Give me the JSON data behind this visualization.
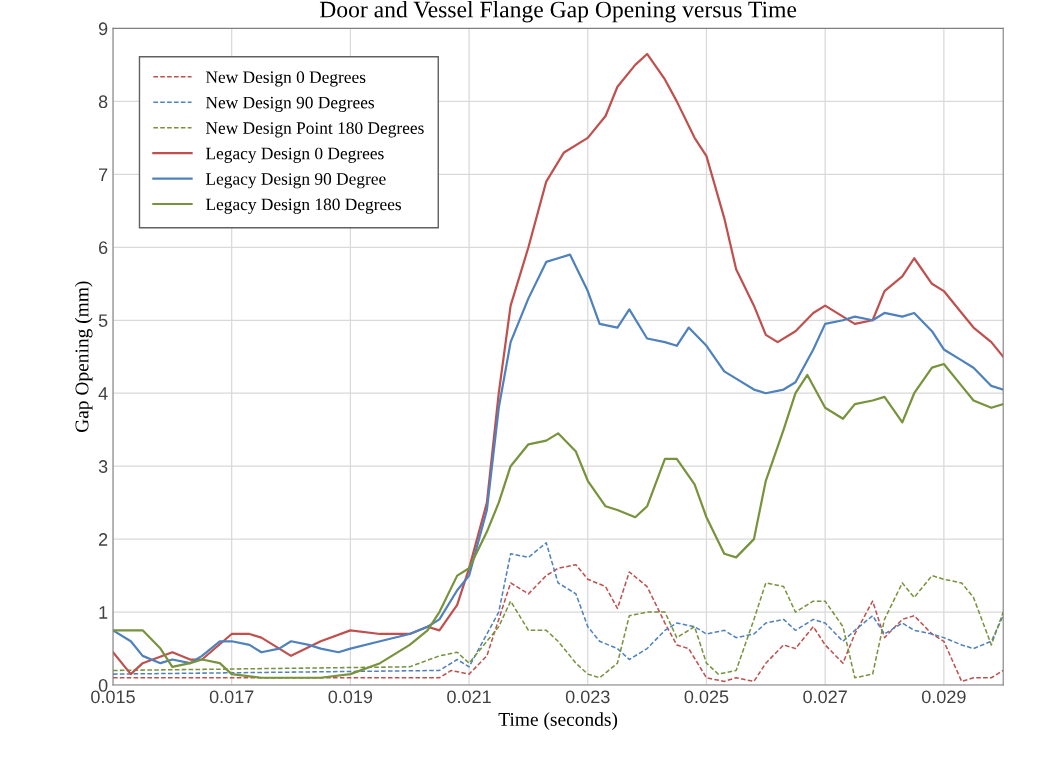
{
  "chart_data": {
    "type": "line",
    "title": "Door and Vessel Flange Gap Opening versus Time",
    "xlabel": "Time (seconds)",
    "ylabel": "Gap Opening (mm)",
    "xlim": [
      0.015,
      0.03
    ],
    "xticks": [
      0.015,
      0.017,
      0.019,
      0.021,
      0.023,
      0.025,
      0.027,
      0.029
    ],
    "ylim": [
      0,
      9
    ],
    "yticks": [
      0,
      1,
      2,
      3,
      4,
      5,
      6,
      7,
      8,
      9
    ],
    "grid": true,
    "legend": "top left",
    "marker": "none",
    "series": [
      {
        "name": "New Design 0 Degrees",
        "color": "#c0504d",
        "line_style": "dashed",
        "x": [
          0.015,
          0.0205,
          0.0207,
          0.021,
          0.0213,
          0.0215,
          0.0217,
          0.022,
          0.0223,
          0.0225,
          0.0228,
          0.023,
          0.0233,
          0.0235,
          0.0237,
          0.024,
          0.0243,
          0.0245,
          0.0247,
          0.025,
          0.0253,
          0.0255,
          0.0258,
          0.026,
          0.0263,
          0.0265,
          0.0268,
          0.027,
          0.0273,
          0.0275,
          0.0278,
          0.028,
          0.0283,
          0.0285,
          0.0288,
          0.029,
          0.0293,
          0.0295,
          0.0298,
          0.03
        ],
        "values": [
          0.1,
          0.1,
          0.2,
          0.15,
          0.4,
          0.9,
          1.4,
          1.25,
          1.5,
          1.6,
          1.65,
          1.45,
          1.35,
          1.05,
          1.55,
          1.35,
          0.85,
          0.55,
          0.5,
          0.1,
          0.05,
          0.1,
          0.05,
          0.3,
          0.55,
          0.5,
          0.8,
          0.55,
          0.3,
          0.7,
          1.15,
          0.65,
          0.9,
          0.95,
          0.7,
          0.6,
          0.05,
          0.1,
          0.1,
          0.2
        ]
      },
      {
        "name": "New Design 90 Degrees",
        "color": "#4f81bd",
        "line_style": "dashed",
        "x": [
          0.015,
          0.0205,
          0.0208,
          0.021,
          0.0213,
          0.0215,
          0.0217,
          0.022,
          0.0223,
          0.0225,
          0.0228,
          0.023,
          0.0232,
          0.0235,
          0.0237,
          0.024,
          0.0243,
          0.0245,
          0.0248,
          0.025,
          0.0253,
          0.0255,
          0.0258,
          0.026,
          0.0263,
          0.0265,
          0.0268,
          0.027,
          0.0273,
          0.0275,
          0.0278,
          0.028,
          0.0283,
          0.0285,
          0.0288,
          0.029,
          0.0293,
          0.0295,
          0.0298,
          0.03
        ],
        "values": [
          0.15,
          0.2,
          0.35,
          0.25,
          0.7,
          1.0,
          1.8,
          1.75,
          1.95,
          1.4,
          1.25,
          0.8,
          0.6,
          0.5,
          0.35,
          0.5,
          0.75,
          0.85,
          0.8,
          0.7,
          0.75,
          0.65,
          0.7,
          0.85,
          0.9,
          0.75,
          0.9,
          0.85,
          0.6,
          0.75,
          0.95,
          0.7,
          0.85,
          0.75,
          0.7,
          0.65,
          0.55,
          0.5,
          0.6,
          0.95
        ]
      },
      {
        "name": "New Design Point 180 Degrees",
        "color": "#77933c",
        "line_style": "dashed",
        "x": [
          0.015,
          0.02,
          0.0205,
          0.0208,
          0.021,
          0.0213,
          0.0215,
          0.0217,
          0.022,
          0.0223,
          0.0225,
          0.0228,
          0.023,
          0.0232,
          0.0235,
          0.0237,
          0.024,
          0.0243,
          0.0245,
          0.0248,
          0.025,
          0.0252,
          0.0255,
          0.0258,
          0.026,
          0.0263,
          0.0265,
          0.0268,
          0.027,
          0.0273,
          0.0275,
          0.0278,
          0.028,
          0.0283,
          0.0285,
          0.0288,
          0.029,
          0.0293,
          0.0295,
          0.0298,
          0.03
        ],
        "values": [
          0.2,
          0.25,
          0.4,
          0.45,
          0.3,
          0.6,
          0.8,
          1.15,
          0.75,
          0.75,
          0.6,
          0.3,
          0.15,
          0.1,
          0.3,
          0.95,
          1.0,
          1.0,
          0.65,
          0.8,
          0.3,
          0.15,
          0.2,
          0.9,
          1.4,
          1.35,
          1.0,
          1.15,
          1.15,
          0.8,
          0.1,
          0.15,
          0.9,
          1.4,
          1.2,
          1.5,
          1.45,
          1.4,
          1.2,
          0.55,
          1.0
        ]
      },
      {
        "name": "Legacy Design 0 Degrees",
        "color": "#c0504d",
        "line_style": "solid",
        "x": [
          0.015,
          0.0153,
          0.0155,
          0.016,
          0.0163,
          0.0165,
          0.017,
          0.0173,
          0.0175,
          0.018,
          0.0185,
          0.019,
          0.0195,
          0.02,
          0.0203,
          0.0205,
          0.0208,
          0.021,
          0.0213,
          0.0215,
          0.0217,
          0.022,
          0.0223,
          0.0226,
          0.023,
          0.0233,
          0.0235,
          0.0238,
          0.024,
          0.0243,
          0.0245,
          0.0248,
          0.025,
          0.0253,
          0.0255,
          0.0258,
          0.026,
          0.0262,
          0.0265,
          0.0268,
          0.027,
          0.0273,
          0.0275,
          0.0278,
          0.028,
          0.0283,
          0.0285,
          0.0288,
          0.029,
          0.0293,
          0.0295,
          0.0298,
          0.03
        ],
        "values": [
          0.45,
          0.15,
          0.3,
          0.45,
          0.35,
          0.35,
          0.7,
          0.7,
          0.65,
          0.4,
          0.6,
          0.75,
          0.7,
          0.7,
          0.8,
          0.75,
          1.1,
          1.6,
          2.5,
          4.0,
          5.2,
          6.0,
          6.9,
          7.3,
          7.5,
          7.8,
          8.2,
          8.5,
          8.65,
          8.3,
          8.0,
          7.5,
          7.25,
          6.4,
          5.7,
          5.2,
          4.8,
          4.7,
          4.85,
          5.1,
          5.2,
          5.05,
          4.95,
          5.0,
          5.4,
          5.6,
          5.85,
          5.5,
          5.4,
          5.1,
          4.9,
          4.7,
          4.5
        ]
      },
      {
        "name": "Legacy Design 90 Degree",
        "color": "#4f81bd",
        "line_style": "solid",
        "x": [
          0.015,
          0.0153,
          0.0155,
          0.0158,
          0.016,
          0.0163,
          0.0165,
          0.0168,
          0.017,
          0.0173,
          0.0175,
          0.0178,
          0.018,
          0.0183,
          0.0185,
          0.0188,
          0.019,
          0.0195,
          0.02,
          0.0203,
          0.0205,
          0.0208,
          0.021,
          0.0213,
          0.0215,
          0.0217,
          0.022,
          0.0223,
          0.0225,
          0.0227,
          0.023,
          0.0232,
          0.0235,
          0.0237,
          0.024,
          0.0243,
          0.0245,
          0.0247,
          0.025,
          0.0253,
          0.0255,
          0.0258,
          0.026,
          0.0263,
          0.0265,
          0.0268,
          0.027,
          0.0273,
          0.0275,
          0.0278,
          0.028,
          0.0283,
          0.0285,
          0.0288,
          0.029,
          0.0293,
          0.0295,
          0.0298,
          0.03
        ],
        "values": [
          0.75,
          0.6,
          0.4,
          0.3,
          0.35,
          0.3,
          0.4,
          0.6,
          0.6,
          0.55,
          0.45,
          0.5,
          0.6,
          0.55,
          0.5,
          0.45,
          0.5,
          0.6,
          0.7,
          0.8,
          0.9,
          1.3,
          1.5,
          2.4,
          3.8,
          4.7,
          5.3,
          5.8,
          5.85,
          5.9,
          5.4,
          4.95,
          4.9,
          5.15,
          4.75,
          4.7,
          4.65,
          4.9,
          4.65,
          4.3,
          4.2,
          4.05,
          4.0,
          4.05,
          4.15,
          4.6,
          4.95,
          5.0,
          5.05,
          5.0,
          5.1,
          5.05,
          5.1,
          4.85,
          4.6,
          4.45,
          4.35,
          4.1,
          4.05
        ]
      },
      {
        "name": "Legacy Design 180 Degrees",
        "color": "#77933c",
        "line_style": "solid",
        "x": [
          0.015,
          0.0155,
          0.0158,
          0.016,
          0.0163,
          0.0165,
          0.0168,
          0.017,
          0.0175,
          0.018,
          0.0185,
          0.019,
          0.0195,
          0.02,
          0.0203,
          0.0205,
          0.0208,
          0.021,
          0.0213,
          0.0215,
          0.0217,
          0.022,
          0.0223,
          0.0225,
          0.0228,
          0.023,
          0.0233,
          0.0235,
          0.0238,
          0.024,
          0.0243,
          0.0245,
          0.0248,
          0.025,
          0.0253,
          0.0255,
          0.0258,
          0.026,
          0.0263,
          0.0265,
          0.0267,
          0.027,
          0.0273,
          0.0275,
          0.0278,
          0.028,
          0.0283,
          0.0285,
          0.0288,
          0.029,
          0.0293,
          0.0295,
          0.0298,
          0.03
        ],
        "values": [
          0.75,
          0.75,
          0.5,
          0.25,
          0.3,
          0.35,
          0.3,
          0.15,
          0.1,
          0.1,
          0.1,
          0.15,
          0.3,
          0.55,
          0.75,
          1.0,
          1.5,
          1.6,
          2.1,
          2.5,
          3.0,
          3.3,
          3.35,
          3.45,
          3.2,
          2.8,
          2.45,
          2.4,
          2.3,
          2.45,
          3.1,
          3.1,
          2.75,
          2.3,
          1.8,
          1.75,
          2.0,
          2.8,
          3.5,
          4.0,
          4.25,
          3.8,
          3.65,
          3.85,
          3.9,
          3.95,
          3.6,
          4.0,
          4.35,
          4.4,
          4.1,
          3.9,
          3.8,
          3.85
        ]
      }
    ]
  }
}
